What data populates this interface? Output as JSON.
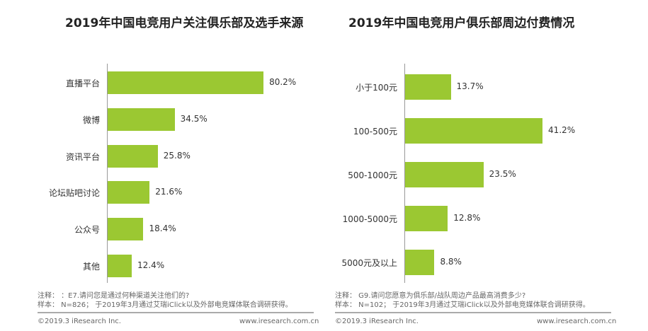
{
  "chart_data": [
    {
      "type": "bar",
      "orientation": "horizontal",
      "title": "2019年中国电竞用户关注俱乐部及选手来源",
      "categories": [
        "直播平台",
        "微博",
        "资讯平台",
        "论坛贴吧讨论",
        "公众号",
        "其他"
      ],
      "values": [
        80.2,
        34.5,
        25.8,
        21.6,
        18.4,
        12.4
      ],
      "value_labels": [
        "80.2%",
        "34.5%",
        "25.8%",
        "21.6%",
        "18.4%",
        "12.4%"
      ],
      "unit": "%",
      "xlim": [
        0,
        100
      ]
    },
    {
      "type": "bar",
      "orientation": "horizontal",
      "title": "2019年中国电竞用户俱乐部周边付费情况",
      "categories": [
        "小于100元",
        "100-500元",
        "500-1000元",
        "1000-5000元",
        "5000元及以上"
      ],
      "values": [
        13.7,
        41.2,
        23.5,
        12.8,
        8.8
      ],
      "value_labels": [
        "13.7%",
        "41.2%",
        "23.5%",
        "12.8%",
        "8.8%"
      ],
      "unit": "%",
      "xlim": [
        0,
        60
      ]
    }
  ],
  "colors": {
    "bar": "#9bc832"
  },
  "notes": [
    {
      "note": "注释： ：E7.请问您是通过何种渠道关注他们的?",
      "sample": "样本： N=826； 于2019年3月通过艾瑞iClick以及外部电竞媒体联合调研获得。",
      "copyright": "©2019.3 iResearch Inc.",
      "url": "www.iresearch.com.cn"
    },
    {
      "note": "注释： G9.请问您愿意为俱乐部/战队周边产品最高消费多少?",
      "sample": "样本： N=102； 于2019年3月通过艾瑞iClick以及外部电竞媒体联合调研获得。",
      "copyright": "©2019.3 iResearch Inc.",
      "url": "www.iresearch.com.cn"
    }
  ]
}
